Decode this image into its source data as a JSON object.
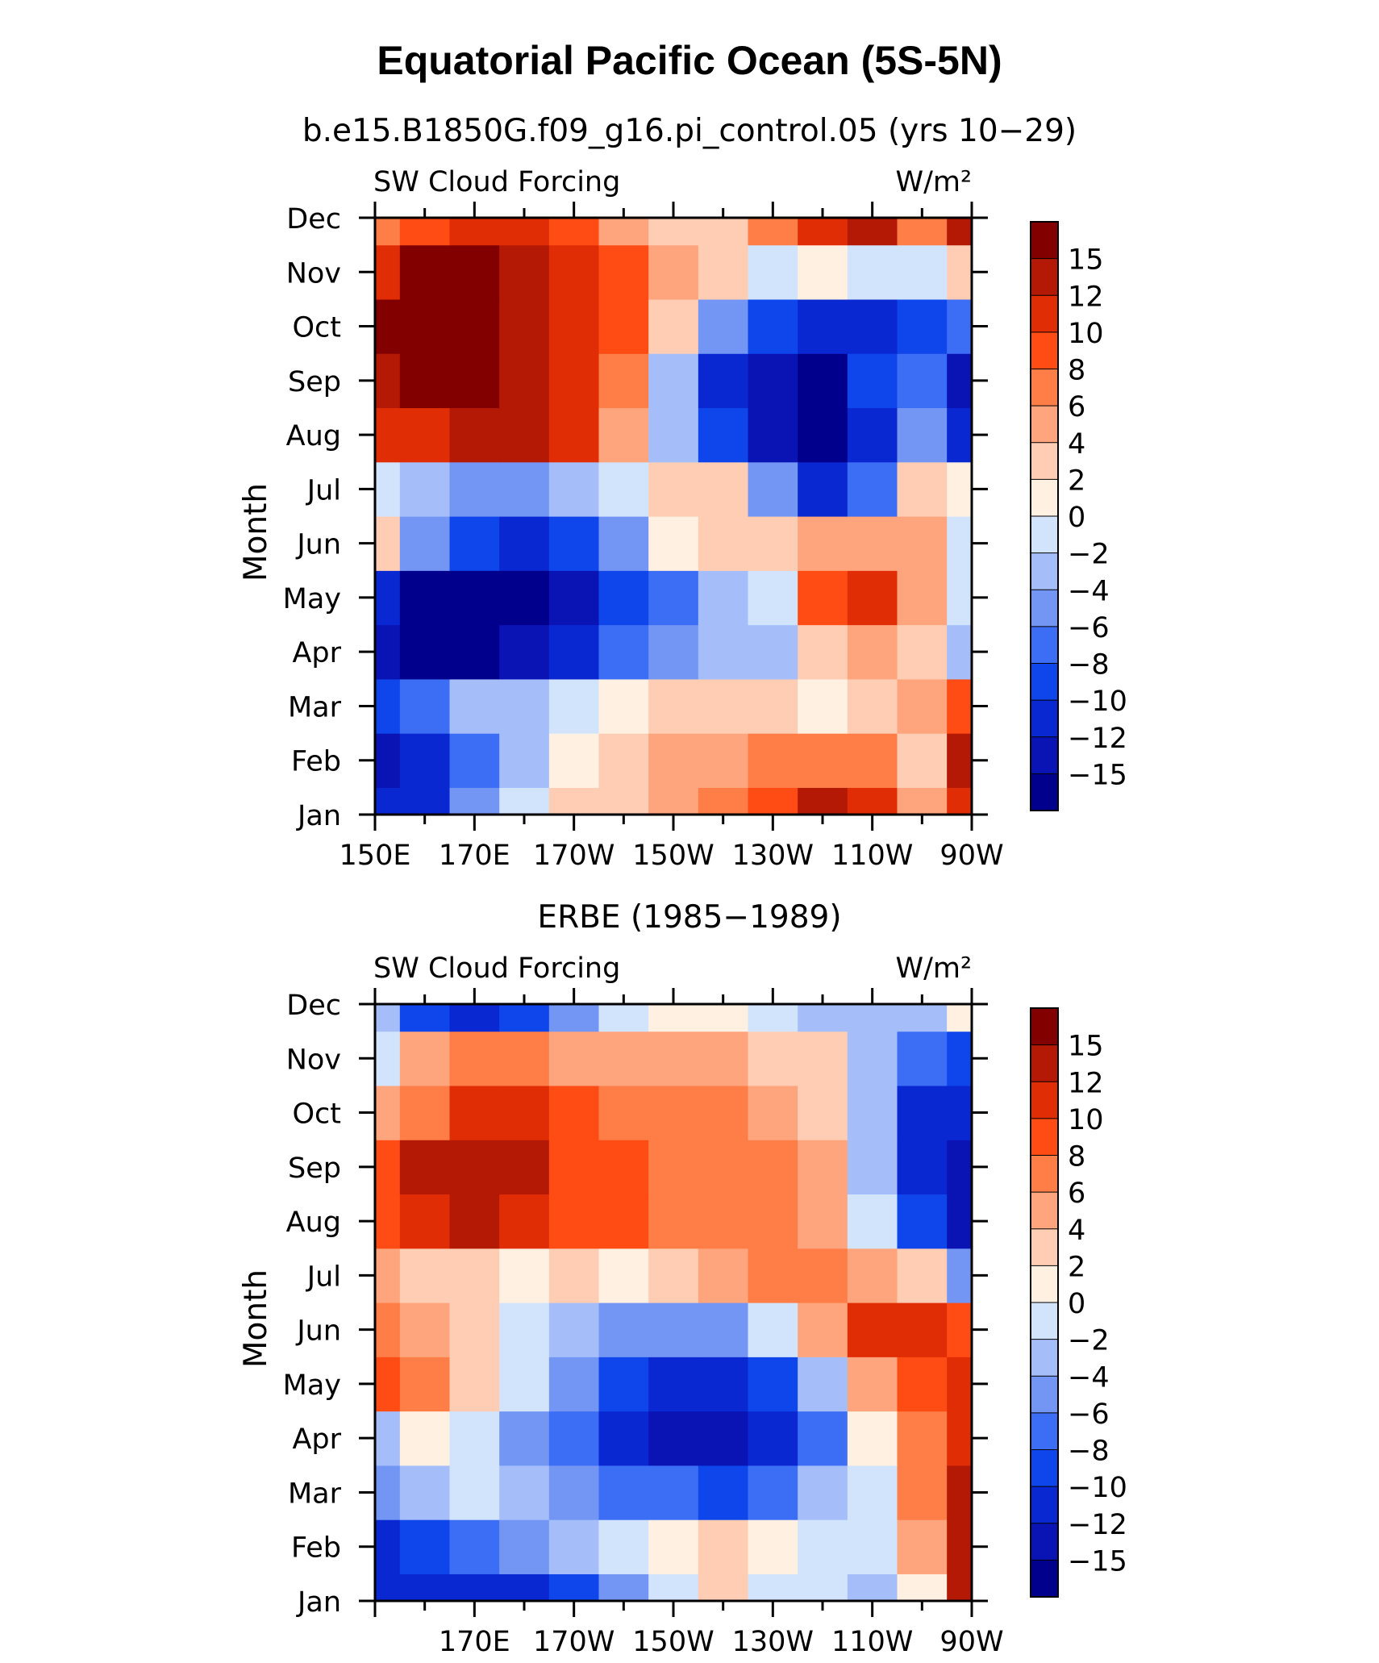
{
  "figure": {
    "title": "Equatorial Pacific Ocean (5S-5N)"
  },
  "colormap": {
    "colors": [
      "#00008c",
      "#0a14b4",
      "#0a28d2",
      "#0f46eb",
      "#3c6ef5",
      "#7396f5",
      "#a5befa",
      "#d2e4fc",
      "#fff0e1",
      "#ffcdb4",
      "#ffa57d",
      "#ff7d46",
      "#ff4b14",
      "#e12d05",
      "#b41905",
      "#820000"
    ],
    "levels": [
      -15,
      -12,
      -10,
      -8,
      -6,
      -4,
      -2,
      0,
      2,
      4,
      6,
      8,
      10,
      12,
      15
    ]
  },
  "chart_data": [
    {
      "type": "heatmap",
      "subtitle": "b.e15.B1850G.f09_g16.pi_control.05 (yrs 10−29)",
      "left_label": "SW Cloud Forcing",
      "right_label": "W/m²",
      "ylabel": "Month",
      "xlabel": "",
      "x": [
        "150E",
        "160E",
        "170E",
        "180",
        "170W",
        "160W",
        "150W",
        "140W",
        "130W",
        "120W",
        "110W",
        "100W",
        "90W"
      ],
      "x_tick_labels": [
        "150E",
        "170E",
        "170W",
        "150W",
        "130W",
        "110W",
        "90W"
      ],
      "y": [
        "Jan",
        "Feb",
        "Mar",
        "Apr",
        "May",
        "Jun",
        "Jul",
        "Aug",
        "Sep",
        "Oct",
        "Nov",
        "Dec"
      ],
      "colorbar_labels": [
        "15",
        "12",
        "10",
        "8",
        "6",
        "4",
        "2",
        "0",
        "−2",
        "−4",
        "−6",
        "−8",
        "−10",
        "−12",
        "−15"
      ],
      "values": [
        [
          -12,
          -12,
          -6,
          -1,
          2,
          3,
          4,
          6,
          8,
          12,
          10,
          5,
          10
        ],
        [
          -14,
          -12,
          -7,
          -3,
          1,
          3,
          4,
          5,
          6,
          6,
          6,
          3,
          13
        ],
        [
          -9,
          -7,
          -4,
          -3,
          -1,
          1,
          2,
          3,
          2,
          1,
          2,
          4,
          8
        ],
        [
          -14,
          -16,
          -16,
          -15,
          -12,
          -8,
          -5,
          -3,
          -3,
          3,
          5,
          2,
          -3
        ],
        [
          -11,
          -16,
          -16,
          -16,
          -14,
          -10,
          -7,
          -4,
          -2,
          9,
          11,
          4,
          -1
        ],
        [
          3,
          -6,
          -9,
          -12,
          -9,
          -5,
          0,
          2,
          2,
          4,
          4,
          4,
          -1
        ],
        [
          -2,
          -4,
          -6,
          -5,
          -3,
          -1,
          2,
          3,
          -5,
          -11,
          -7,
          2,
          0
        ],
        [
          10,
          11,
          13,
          13,
          10,
          4,
          -3,
          -9,
          -13,
          -16,
          -11,
          -6,
          -11
        ],
        [
          12,
          16,
          17,
          13,
          10,
          6,
          -4,
          -12,
          -13,
          -16,
          -10,
          -8,
          -13
        ],
        [
          16,
          17,
          17,
          13,
          11,
          8,
          3,
          -6,
          -10,
          -12,
          -12,
          -10,
          -8
        ],
        [
          11,
          16,
          15,
          12,
          10,
          8,
          5,
          2,
          -1,
          0,
          -2,
          -1,
          2
        ],
        [
          7,
          9,
          10,
          10,
          8,
          5,
          2,
          2,
          6,
          10,
          14,
          6,
          12
        ]
      ],
      "xlim": [
        "150E",
        "90W"
      ],
      "grid": false,
      "legend": "right"
    },
    {
      "type": "heatmap",
      "subtitle": "ERBE (1985−1989)",
      "left_label": "SW Cloud Forcing",
      "right_label": "W/m²",
      "ylabel": "Month",
      "xlabel": "",
      "x": [
        "150E",
        "160E",
        "170E",
        "180",
        "170W",
        "160W",
        "150W",
        "140W",
        "130W",
        "120W",
        "110W",
        "100W",
        "90W"
      ],
      "x_tick_labels": [
        "170E",
        "170W",
        "150W",
        "130W",
        "110W",
        "90W"
      ],
      "y": [
        "Jan",
        "Feb",
        "Mar",
        "Apr",
        "May",
        "Jun",
        "Jul",
        "Aug",
        "Sep",
        "Oct",
        "Nov",
        "Dec"
      ],
      "colorbar_labels": [
        "15",
        "12",
        "10",
        "8",
        "6",
        "4",
        "2",
        "0",
        "−2",
        "−4",
        "−6",
        "−8",
        "−10",
        "−12",
        "−15"
      ],
      "values": [
        [
          -12,
          -12,
          -11,
          -12,
          -9,
          -5,
          -1,
          2,
          -1,
          -2,
          -3,
          1,
          12
        ],
        [
          -11,
          -9,
          -7,
          -6,
          -3,
          -1,
          1,
          2,
          1,
          -1,
          -1,
          5,
          12
        ],
        [
          -6,
          -4,
          -2,
          -4,
          -5,
          -8,
          -8,
          -10,
          -8,
          -4,
          -1,
          6,
          13
        ],
        [
          -3,
          1,
          -2,
          -6,
          -8,
          -11,
          -13,
          -14,
          -12,
          -8,
          1,
          6,
          10
        ],
        [
          9,
          7,
          2,
          -2,
          -5,
          -10,
          -11,
          -11,
          -9,
          -3,
          4,
          9,
          11
        ],
        [
          6,
          4,
          2,
          -2,
          -3,
          -5,
          -6,
          -5,
          -1,
          5,
          10,
          11,
          8
        ],
        [
          4,
          3,
          2,
          1,
          2,
          0,
          3,
          5,
          6,
          6,
          5,
          3,
          -5
        ],
        [
          9,
          11,
          12,
          10,
          8,
          8,
          7,
          7,
          6,
          5,
          -1,
          -9,
          -14
        ],
        [
          9,
          12,
          13,
          12,
          9,
          8,
          7,
          7,
          6,
          4,
          -3,
          -12,
          -14
        ],
        [
          4,
          7,
          10,
          10,
          8,
          7,
          6,
          7,
          5,
          3,
          -4,
          -11,
          -12
        ],
        [
          -2,
          4,
          7,
          7,
          5,
          5,
          4,
          4,
          3,
          2,
          -3,
          -8,
          -10
        ],
        [
          -4,
          -10,
          -12,
          -10,
          -5,
          -1,
          0,
          0,
          -1,
          -3,
          -3,
          -3,
          1
        ]
      ],
      "xlim": [
        "150E",
        "90W"
      ],
      "grid": false,
      "legend": "right"
    }
  ]
}
